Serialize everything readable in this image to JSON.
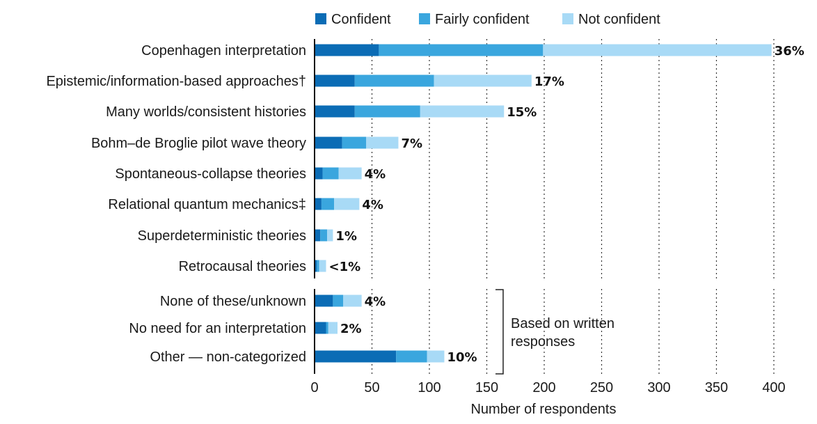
{
  "chart_data": {
    "type": "bar",
    "orientation": "horizontal",
    "stacked": true,
    "xlabel": "Number of respondents",
    "xlim": [
      0,
      400
    ],
    "xticks": [
      0,
      50,
      100,
      150,
      200,
      250,
      300,
      350,
      400
    ],
    "grid": "vertical dotted",
    "legend_position": "top",
    "series": [
      {
        "name": "Confident",
        "color": "#0b6cb5"
      },
      {
        "name": "Fairly confident",
        "color": "#3aa6de"
      },
      {
        "name": "Not confident",
        "color": "#a8daf6"
      }
    ],
    "groups": [
      {
        "rows": [
          {
            "label": "Copenhagen interpretation",
            "values": [
              56,
              143,
              199
            ],
            "pct": "36%"
          },
          {
            "label": "Epistemic/information-based approaches†",
            "values": [
              35,
              69,
              85
            ],
            "pct": "17%"
          },
          {
            "label": "Many worlds/consistent histories",
            "values": [
              35,
              57,
              73
            ],
            "pct": "15%"
          },
          {
            "label": "Bohm–de Broglie pilot wave theory",
            "values": [
              24,
              21,
              28
            ],
            "pct": "7%"
          },
          {
            "label": "Spontaneous-collapse theories",
            "values": [
              7,
              14,
              20
            ],
            "pct": "4%"
          },
          {
            "label": "Relational quantum mechanics‡",
            "values": [
              6,
              11,
              22
            ],
            "pct": "4%"
          },
          {
            "label": "Superdeterministic theories",
            "values": [
              5,
              6,
              5
            ],
            "pct": "1%"
          },
          {
            "label": "Retrocausal theories",
            "values": [
              2,
              2,
              6
            ],
            "pct": "<1%"
          }
        ]
      },
      {
        "bracket_label": [
          "Based on written",
          "responses"
        ],
        "rows": [
          {
            "label": "None of these/unknown",
            "values": [
              16,
              9,
              16
            ],
            "pct": "4%"
          },
          {
            "label": "No need for an interpretation",
            "values": [
              10,
              2,
              8
            ],
            "pct": "2%"
          },
          {
            "label": "Other — non-categorized",
            "values": [
              71,
              27,
              15
            ],
            "pct": "10%"
          }
        ]
      }
    ]
  }
}
